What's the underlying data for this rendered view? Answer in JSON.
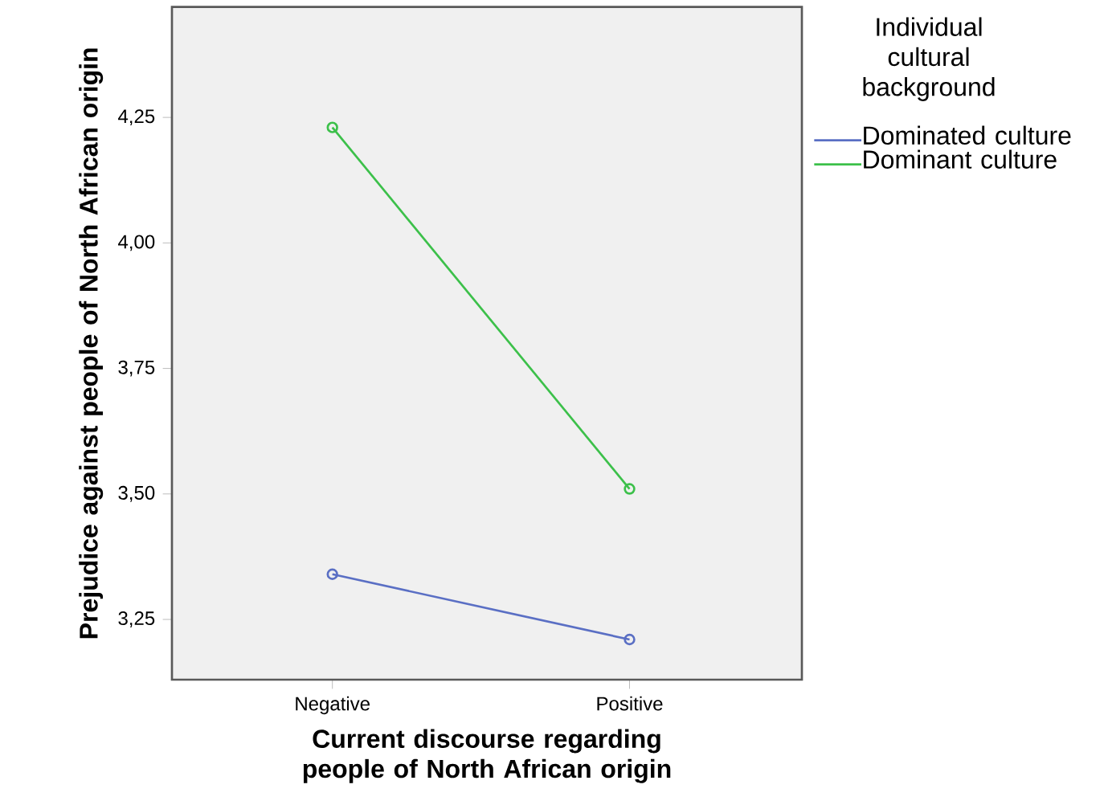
{
  "chart_data": {
    "type": "line",
    "xlabel": "Current discourse regarding people of North African origin",
    "ylabel": "Prejudice against people of North African origin",
    "legend_title": "Individual cultural background",
    "categories": [
      "Negative",
      "Positive"
    ],
    "series": [
      {
        "name": "Dominated culture",
        "color": "#5a6fc4",
        "values": [
          3.34,
          3.21
        ]
      },
      {
        "name": "Dominant culture",
        "color": "#3cc04a",
        "values": [
          4.23,
          3.51
        ]
      }
    ],
    "ylim": [
      3.13,
      4.47
    ],
    "yticks": [
      {
        "value": 3.25,
        "label": "3,25"
      },
      {
        "value": 3.5,
        "label": "3,50"
      },
      {
        "value": 3.75,
        "label": "3,75"
      },
      {
        "value": 4.0,
        "label": "4,00"
      },
      {
        "value": 4.25,
        "label": "4,25"
      }
    ],
    "marker": "circle",
    "line_style": "solid",
    "legend": "right",
    "grid": false
  }
}
